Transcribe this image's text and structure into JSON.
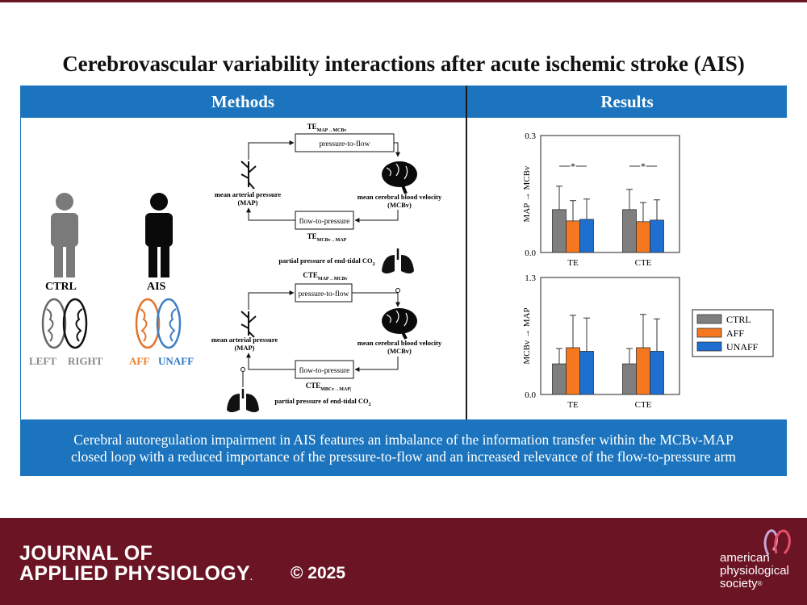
{
  "title": "Cerebrovascular variability interactions after acute ischemic stroke (AIS)",
  "headers": {
    "methods": "Methods",
    "results": "Results"
  },
  "subjects": {
    "ctrl": "CTRL",
    "ais": "AIS",
    "ctrl_brain": {
      "left": "LEFT",
      "right": "RIGHT"
    },
    "ais_brain": {
      "aff": "AFF",
      "unaff": "UNAFF"
    }
  },
  "diagram_top": {
    "te_top": {
      "main": "TE",
      "sub": "MAP→MCBv"
    },
    "arm_top": "pressure-to-flow",
    "map_label": [
      "mean arterial pressure",
      "(MAP)"
    ],
    "mcbv_label": [
      "mean cerebral blood velocity",
      "(MCBv)"
    ],
    "arm_bottom": "flow-to-pressure",
    "te_bottom": {
      "main": "TE",
      "sub": "MCBv→MAP"
    },
    "co2_label": {
      "main": "partial pressure of end-tidal CO",
      "sub": "2"
    }
  },
  "diagram_bottom": {
    "cte_top": {
      "main": "CTE",
      "sub": "MAP→MCBv"
    },
    "arm_top": "pressure-to-flow",
    "map_label": [
      "mean arterial pressure",
      "(MAP)"
    ],
    "mcbv_label": [
      "mean cerebral blood velocity",
      "(MCBv)"
    ],
    "arm_bottom": "flow-to-pressure",
    "cte_bottom": {
      "main": "CTE",
      "sub": "MBCv→MAP|"
    },
    "co2_label": {
      "main": "partial pressure of end-tidal CO",
      "sub": "2"
    }
  },
  "legend": [
    "CTRL",
    "AFF",
    "UNAFF"
  ],
  "colors": {
    "ctrl": "#7f7f7f",
    "aff": "#f5771f",
    "unaff": "#1f6fd1",
    "band": "#1b74bd",
    "footer": "#6b1423"
  },
  "chart_data": [
    {
      "type": "bar",
      "ylabel": "MAP → MCBv",
      "ylim": [
        0,
        0.3
      ],
      "yticks": [
        "0.0",
        "0.3"
      ],
      "categories": [
        "TE",
        "CTE"
      ],
      "series": [
        {
          "name": "CTRL",
          "values": [
            0.11,
            0.11
          ],
          "errors": [
            0.06,
            0.052
          ]
        },
        {
          "name": "AFF",
          "values": [
            0.081,
            0.079
          ],
          "errors": [
            0.052,
            0.049
          ]
        },
        {
          "name": "UNAFF",
          "values": [
            0.085,
            0.083
          ],
          "errors": [
            0.052,
            0.052
          ]
        }
      ],
      "annotations": [
        "*",
        "*"
      ]
    },
    {
      "type": "bar",
      "ylabel": "MCBv → MAP",
      "ylim": [
        0,
        1.3
      ],
      "yticks": [
        "0.0",
        "1.3"
      ],
      "categories": [
        "TE",
        "CTE"
      ],
      "series": [
        {
          "name": "CTRL",
          "values": [
            0.34,
            0.34
          ],
          "errors": [
            0.17,
            0.17
          ]
        },
        {
          "name": "AFF",
          "values": [
            0.52,
            0.52
          ],
          "errors": [
            0.36,
            0.37
          ]
        },
        {
          "name": "UNAFF",
          "values": [
            0.48,
            0.48
          ],
          "errors": [
            0.37,
            0.36
          ]
        }
      ]
    }
  ],
  "conclusion": [
    "Cerebral autoregulation impairment in AIS features an imbalance of the information transfer within the MCBv-MAP",
    "closed loop with a reduced importance of the pressure-to-flow and an increased relevance of the flow-to-pressure arm"
  ],
  "footer": {
    "journal_line1": "JOURNAL OF",
    "journal_line2": "APPLIED PHYSIOLOGY",
    "journal_mark": ".",
    "copyright": "© 2025",
    "society": [
      "american",
      "physiological",
      "society"
    ],
    "society_mark": "®"
  }
}
